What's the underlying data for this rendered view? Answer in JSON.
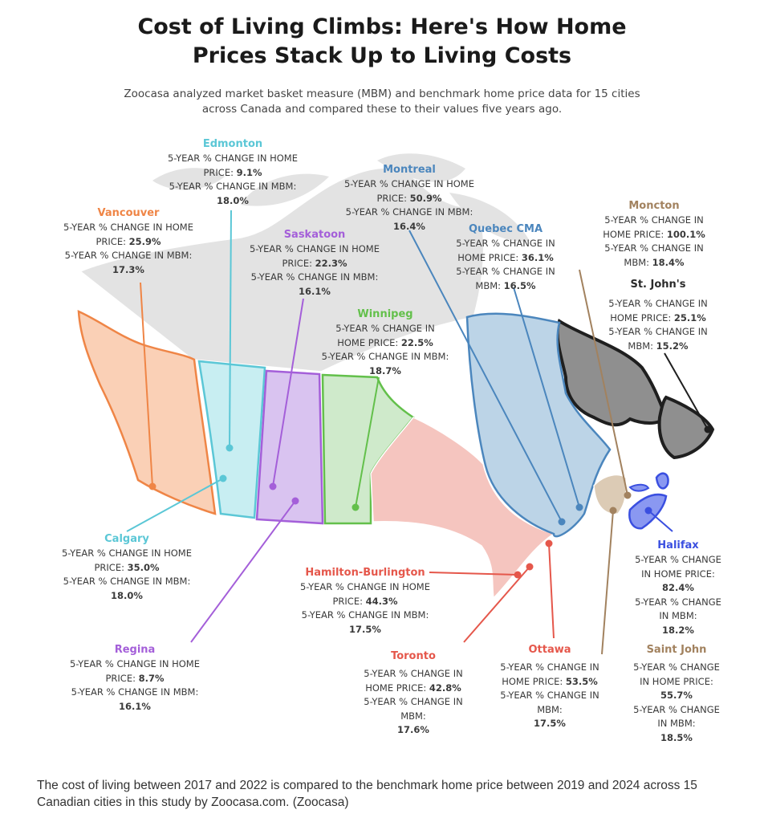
{
  "title_line1": "Cost of Living Climbs: Here's How Home",
  "title_line2": "Prices Stack Up to Living Costs",
  "subtitle_line1": "Zoocasa analyzed market basket measure (MBM) and benchmark home price data for 15 cities",
  "subtitle_line2": "across Canada and compared these to their values five years ago.",
  "colors": {
    "vancouver": "#ef8546",
    "edmonton": "#5bc7d6",
    "saskatoon": "#a45fd9",
    "winnipeg": "#63c04b",
    "montreal": "#4b86bd",
    "moncton": "#a2825f",
    "halifax": "#3a4fe0",
    "hamilton": "#e5574b",
    "stjohns": "#2a2a2a"
  },
  "cities": {
    "edmonton": {
      "name": "Edmonton",
      "l1": "5-YEAR % CHANGE IN HOME",
      "l2": "PRICE:",
      "v1": "9.1%",
      "l3": "5-YEAR % CHANGE IN MBM:",
      "v2": "18.0%"
    },
    "montreal": {
      "name": "Montreal",
      "l1": "5-YEAR % CHANGE IN HOME",
      "l2": "PRICE:",
      "v1": "50.9%",
      "l3": "5-YEAR % CHANGE IN MBM:",
      "v2": "16.4%"
    },
    "vancouver": {
      "name": "Vancouver",
      "l1": "5-YEAR % CHANGE IN HOME",
      "l2": "PRICE:",
      "v1": "25.9%",
      "l3": "5-YEAR % CHANGE IN MBM:",
      "v2": "17.3%"
    },
    "saskatoon": {
      "name": "Saskatoon",
      "l1": "5-YEAR % CHANGE IN HOME",
      "l2": "PRICE:",
      "v1": "22.3%",
      "l3": "5-YEAR % CHANGE IN MBM:",
      "v2": "16.1%"
    },
    "quebec": {
      "name": "Quebec CMA",
      "l1": "5-YEAR % CHANGE IN",
      "l2": "HOME PRICE:",
      "v1": "36.1%",
      "l3": "5-YEAR % CHANGE IN",
      "l4": "MBM:",
      "v2": "16.5%"
    },
    "moncton": {
      "name": "Moncton",
      "l1": "5-YEAR % CHANGE IN",
      "l2": "HOME PRICE:",
      "v1": "100.1%",
      "l3": "5-YEAR % CHANGE IN",
      "l4": "MBM:",
      "v2": "18.4%"
    },
    "stjohns": {
      "name": "St. John's",
      "l1": "5-YEAR % CHANGE IN",
      "l2": "HOME PRICE:",
      "v1": "25.1%",
      "l3": "5-YEAR % CHANGE IN",
      "l4": "MBM:",
      "v2": "15.2%"
    },
    "winnipeg": {
      "name": "Winnipeg",
      "l1": "5-YEAR % CHANGE IN",
      "l2": "HOME PRICE:",
      "v1": "22.5%",
      "l3": "5-YEAR % CHANGE IN MBM:",
      "v2": "18.7%"
    },
    "calgary": {
      "name": "Calgary",
      "l1": "5-YEAR % CHANGE IN HOME",
      "l2": "PRICE:",
      "v1": "35.0%",
      "l3": "5-YEAR % CHANGE IN MBM:",
      "v2": "18.0%"
    },
    "hamilton": {
      "name": "Hamilton-Burlington",
      "l1": "5-YEAR % CHANGE IN HOME",
      "l2": "PRICE:",
      "v1": "44.3%",
      "l3": "5-YEAR % CHANGE IN MBM:",
      "v2": "17.5%"
    },
    "halifax": {
      "name": "Halifax",
      "l1": "5-YEAR % CHANGE",
      "l2": "IN HOME PRICE:",
      "v1": "82.4%",
      "l3": "5-YEAR % CHANGE",
      "l4": "IN MBM:",
      "v2": "18.2%"
    },
    "regina": {
      "name": "Regina",
      "l1": "5-YEAR % CHANGE IN HOME",
      "l2": "PRICE:",
      "v1": "8.7%",
      "l3": "5-YEAR % CHANGE IN MBM:",
      "v2": "16.1%"
    },
    "toronto": {
      "name": "Toronto",
      "l1": "5-YEAR % CHANGE IN",
      "l2": "HOME PRICE:",
      "v1": "42.8%",
      "l3": "5-YEAR % CHANGE IN",
      "l4": "MBM:",
      "v2": "17.6%"
    },
    "ottawa": {
      "name": "Ottawa",
      "l1": "5-YEAR % CHANGE IN",
      "l2": "HOME PRICE:",
      "v1": "53.5%",
      "l3": "5-YEAR % CHANGE IN",
      "l4": "MBM:",
      "v2": "17.5%"
    },
    "saintjohn": {
      "name": "Saint John",
      "l1": "5-YEAR % CHANGE",
      "l2": "IN HOME PRICE:",
      "v1": "55.7%",
      "l3": "5-YEAR % CHANGE",
      "l4": "IN MBM:",
      "v2": "18.5%"
    }
  },
  "caption": "The cost of living between 2017 and 2022 is compared to the benchmark home price between 2019 and 2024 across 15 Canadian cities in this study by Zoocasa.com. (Zoocasa)"
}
